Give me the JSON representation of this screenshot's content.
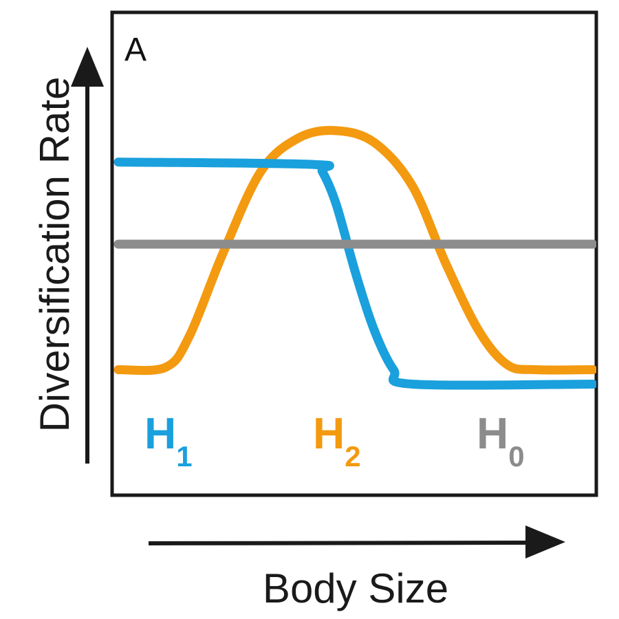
{
  "chart_data": {
    "type": "line",
    "panel_label": "A",
    "xlabel": "Body Size",
    "ylabel": "Diversification Rate",
    "xlim": [
      0,
      10
    ],
    "ylim": [
      0,
      10
    ],
    "grid": false,
    "series": [
      {
        "name": "H1",
        "label_main": "H",
        "label_sub": "1",
        "color": "#1aa0dc",
        "x": [
          0,
          4.1,
          4.3,
          4.6,
          5.0,
          5.4,
          5.8,
          6.2,
          10
        ],
        "y": [
          6.9,
          6.85,
          6.7,
          6.0,
          4.6,
          3.4,
          2.6,
          2.3,
          2.3
        ]
      },
      {
        "name": "H2",
        "label_main": "H",
        "label_sub": "2",
        "color": "#f39a10",
        "x": [
          0,
          1.0,
          1.5,
          2.2,
          3.0,
          3.8,
          4.6,
          5.4,
          6.2,
          6.9,
          7.6,
          8.2,
          8.8,
          10
        ],
        "y": [
          2.6,
          2.65,
          3.3,
          5.0,
          6.7,
          7.4,
          7.55,
          7.3,
          6.4,
          4.8,
          3.4,
          2.7,
          2.6,
          2.6
        ]
      },
      {
        "name": "H0",
        "label_main": "H",
        "label_sub": "0",
        "color": "#8c8c8c",
        "x": [
          0,
          10
        ],
        "y": [
          5.2,
          5.2
        ]
      }
    ]
  }
}
